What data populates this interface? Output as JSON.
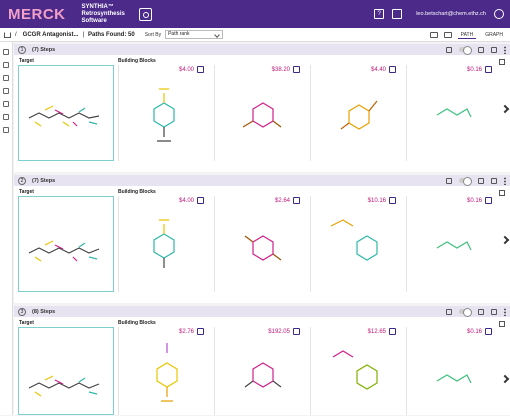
{
  "app": {
    "logo": "MERCK",
    "brand_line1": "SYNTHIA™",
    "brand_line2": "Retrosynthesis",
    "brand_line3": "Software",
    "user_email": "leo.betschart@chem.ethz.ch"
  },
  "toolbar": {
    "breadcrumb": "GCGR Antagonist...",
    "separator": "|",
    "paths_found": "Paths Found: 50",
    "sort_by_label": "Sort By",
    "sort_value": "Path rank",
    "tab_path": "PATH",
    "tab_graph": "GRAPH"
  },
  "routes": [
    {
      "number": "1",
      "steps": "(7) Steps",
      "target_label": "Target",
      "bb_label": "Building Blocks",
      "prices": [
        "$4.00",
        "$38.20",
        "$4.40",
        "$0.16"
      ]
    },
    {
      "number": "2",
      "steps": "(7) Steps",
      "target_label": "Target",
      "bb_label": "Building Blocks",
      "prices": [
        "$4.00",
        "$2.64",
        "$10.16",
        "$0.16"
      ]
    },
    {
      "number": "3",
      "steps": "(8) Steps",
      "target_label": "Target",
      "bb_label": "Building Blocks",
      "prices": [
        "$2.76",
        "$192.05",
        "$12.65",
        "$0.16"
      ]
    }
  ],
  "colors": {
    "header": "#4b2a8a",
    "price": "#c2187a",
    "route_header": "#e7e3f0"
  }
}
